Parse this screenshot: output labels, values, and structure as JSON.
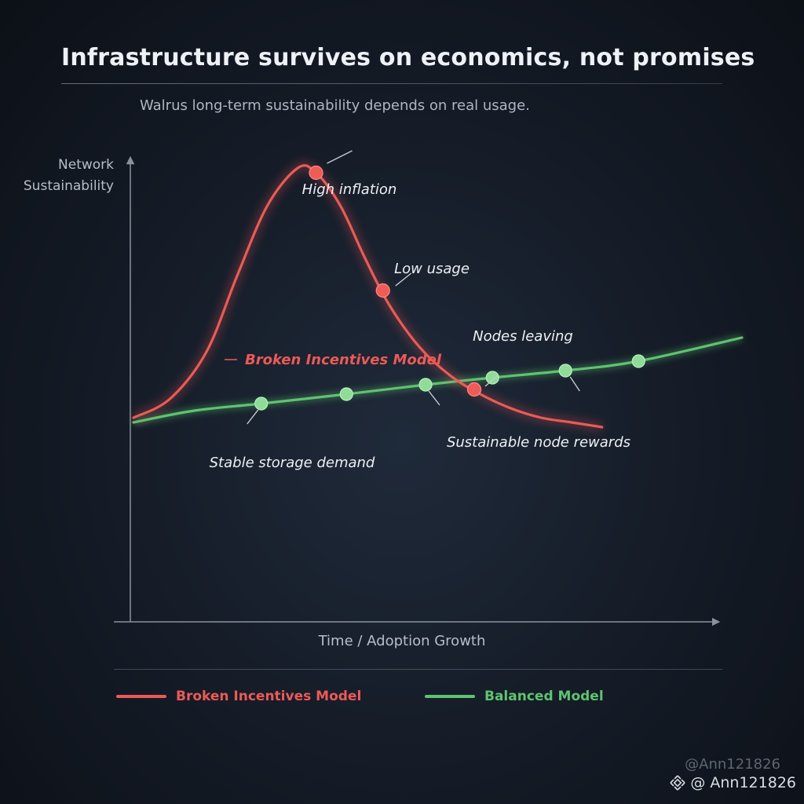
{
  "header": {
    "title": "Infrastructure survives on economics, not promises",
    "subtitle": "Walrus long-term sustainability depends on real usage."
  },
  "chart_data": {
    "type": "line",
    "ylabel_lines": [
      "Network",
      "Sustainability"
    ],
    "xlabel": "Time / Adoption Growth",
    "xlim": [
      0,
      100
    ],
    "ylim": [
      0,
      100
    ],
    "grid": false,
    "legend_position": "bottom",
    "series": [
      {
        "name": "Broken Incentives Model",
        "color": "#ec5a56",
        "x": [
          0,
          6,
          12,
          17,
          22,
          27,
          30,
          34,
          38,
          42,
          47,
          52,
          57,
          62,
          67,
          72,
          77
        ],
        "y": [
          43,
          47,
          57,
          73,
          88,
          96,
          95,
          88,
          77,
          67,
          58,
          52,
          48,
          45,
          43,
          42,
          41
        ],
        "markers": [
          {
            "x": 30,
            "y": 95,
            "label": "High inflation"
          },
          {
            "x": 41,
            "y": 70,
            "label": "Low usage"
          },
          {
            "x": 56,
            "y": 49,
            "label": "Nodes leaving"
          }
        ],
        "inline_label": "Broken Incentives Model"
      },
      {
        "name": "Balanced Model",
        "color": "#5ec46f",
        "x": [
          0,
          10,
          21,
          35,
          48,
          59,
          71,
          83,
          100
        ],
        "y": [
          42,
          44.5,
          46,
          48,
          50,
          51.5,
          53,
          55,
          60
        ],
        "markers": [
          {
            "x": 21,
            "y": 46,
            "label": "Stable storage demand"
          },
          {
            "x": 35,
            "y": 48,
            "label": ""
          },
          {
            "x": 48,
            "y": 50,
            "label": ""
          },
          {
            "x": 59,
            "y": 51.5,
            "label": ""
          },
          {
            "x": 71,
            "y": 53,
            "label": "Sustainable node rewards"
          },
          {
            "x": 83,
            "y": 55,
            "label": ""
          }
        ]
      }
    ]
  },
  "legend": {
    "items": [
      {
        "label": "Broken Incentives Model",
        "color": "#ec5a56"
      },
      {
        "label": "Balanced Model",
        "color": "#5ec46f"
      }
    ]
  },
  "watermark": {
    "ghost_text": "@Ann121826",
    "text": "@ Ann121826",
    "icon": "binance-diamond-icon"
  }
}
